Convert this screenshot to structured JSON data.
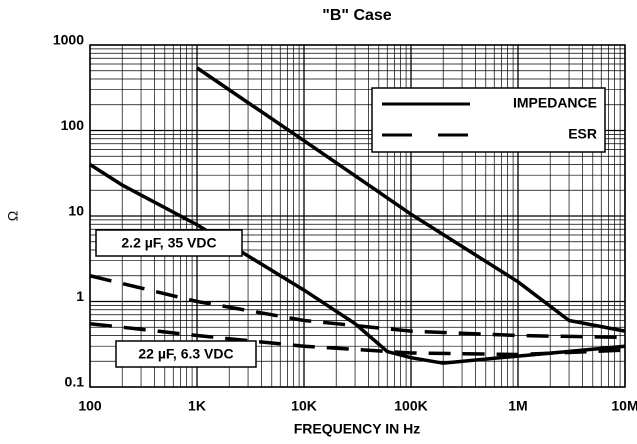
{
  "chart_data": {
    "type": "line",
    "title": "\"B\" Case",
    "xlabel": "FREQUENCY IN Hz",
    "ylabel": "Ω",
    "xscale": "log",
    "yscale": "log",
    "grid": true,
    "xlim": [
      100,
      10000000
    ],
    "ylim": [
      0.1,
      1000
    ],
    "xticks": [
      {
        "value": 100,
        "label": "100"
      },
      {
        "value": 1000,
        "label": "1K"
      },
      {
        "value": 10000,
        "label": "10K"
      },
      {
        "value": 100000,
        "label": "100K"
      },
      {
        "value": 1000000,
        "label": "1M"
      },
      {
        "value": 10000000,
        "label": "10M"
      }
    ],
    "yticks": [
      0.1,
      1,
      10,
      100,
      1000
    ],
    "legend": [
      {
        "label": "IMPEDANCE",
        "style": "solid"
      },
      {
        "label": "ESR",
        "style": "dashed"
      }
    ],
    "annotations": [
      "2.2 µF, 35 VDC",
      "22 µF, 6.3 VDC"
    ],
    "series": [
      {
        "style": "solid",
        "color": "#000000",
        "x": [
          1000,
          10000,
          100000,
          1000000,
          3000000,
          10000000
        ],
        "values": [
          540,
          76,
          10.5,
          1.7,
          0.6,
          0.45
        ]
      },
      {
        "style": "solid",
        "color": "#000000",
        "x": [
          100,
          200,
          1000,
          10000,
          30000,
          60000,
          100000,
          200000,
          1000000,
          10000000
        ],
        "values": [
          40,
          23,
          7.9,
          1.36,
          0.55,
          0.26,
          0.22,
          0.19,
          0.23,
          0.3
        ]
      },
      {
        "style": "dashed",
        "color": "#000000",
        "x": [
          100,
          1000,
          10000,
          100000,
          1000000,
          10000000
        ],
        "values": [
          2.0,
          1.0,
          0.6,
          0.45,
          0.4,
          0.38
        ]
      },
      {
        "style": "dashed",
        "color": "#000000",
        "x": [
          100,
          1000,
          10000,
          100000,
          1000000,
          10000000
        ],
        "values": [
          0.55,
          0.4,
          0.3,
          0.25,
          0.24,
          0.27
        ]
      }
    ]
  }
}
